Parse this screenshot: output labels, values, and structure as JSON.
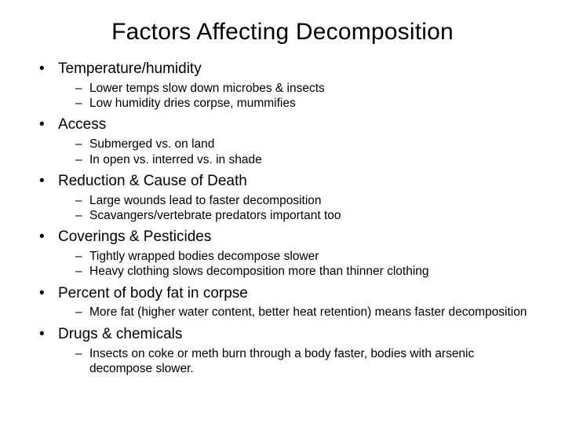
{
  "title": "Factors Affecting Decomposition",
  "bullets": [
    {
      "label": "Temperature/humidity",
      "subs": [
        "Lower temps slow down microbes & insects",
        "Low humidity dries corpse, mummifies"
      ]
    },
    {
      "label": "Access",
      "subs": [
        "Submerged vs. on land",
        "In open vs. interred vs. in shade"
      ]
    },
    {
      "label": "Reduction & Cause of Death",
      "subs": [
        "Large wounds lead to faster decomposition",
        "Scavangers/vertebrate predators important too"
      ]
    },
    {
      "label": "Coverings & Pesticides",
      "subs": [
        "Tightly wrapped bodies decompose slower",
        "Heavy clothing slows decomposition more than thinner clothing"
      ]
    },
    {
      "label": "Percent of body fat in corpse",
      "subs": [
        "More fat (higher water content, better heat retention) means faster decomposition"
      ]
    },
    {
      "label": "Drugs & chemicals",
      "subs": [
        "Insects on coke or meth burn through a body faster, bodies with arsenic decompose slower."
      ]
    }
  ],
  "style": {
    "background_color": "#ffffff",
    "text_color": "#000000",
    "title_fontsize": 30,
    "main_fontsize": 19,
    "sub_fontsize": 15.5,
    "main_bullet_char": "•",
    "sub_bullet_char": "–"
  }
}
